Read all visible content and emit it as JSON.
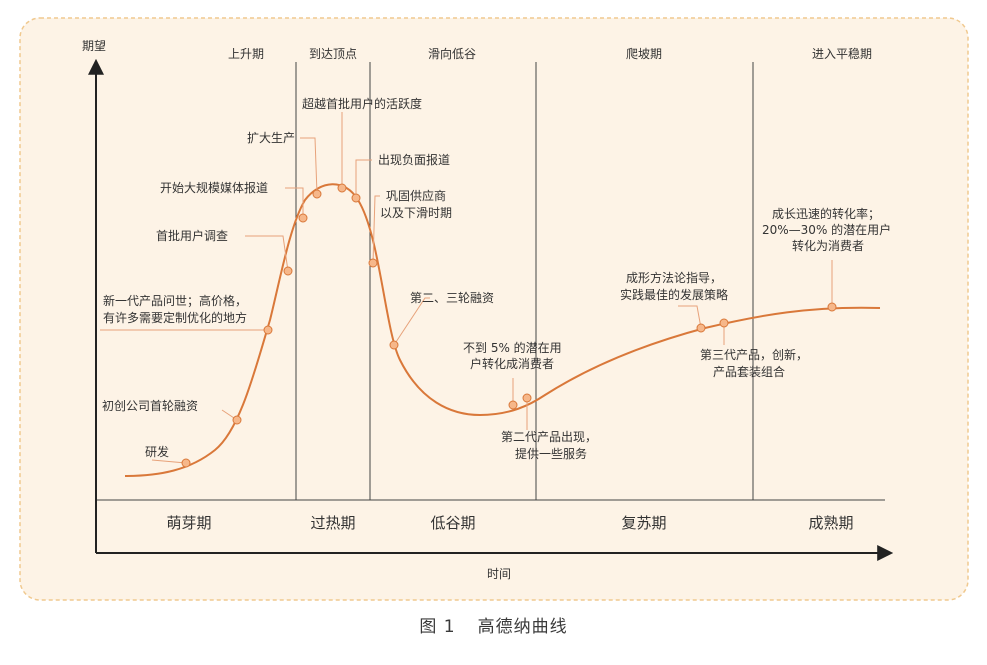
{
  "diagram": {
    "axis_y_label": "期望",
    "axis_x_label": "时间",
    "phases_top": [
      "上升期",
      "到达顶点",
      "滑向低谷",
      "爬坡期",
      "进入平稳期"
    ],
    "phases_bottom": [
      "萌芽期",
      "过热期",
      "低谷期",
      "复苏期",
      "成熟期"
    ],
    "annotations": {
      "a1": [
        "研发"
      ],
      "a2": [
        "初创公司首轮融资"
      ],
      "a3": [
        "新一代产品问世；高价格，",
        "有许多需要定制优化的地方"
      ],
      "a4": [
        "首批用户调查"
      ],
      "a5": [
        "开始大规模媒体报道"
      ],
      "a6": [
        "扩大生产"
      ],
      "a7": [
        "超越首批用户的活跃度"
      ],
      "a8": [
        "出现负面报道"
      ],
      "a9": [
        "巩固供应商",
        "以及下滑时期"
      ],
      "a10": [
        "第二、三轮融资"
      ],
      "a11": [
        "不到 5% 的潜在用",
        "户转化成消费者"
      ],
      "a12": [
        "第二代产品出现，",
        "提供一些服务"
      ],
      "a13": [
        "成形方法论指导，",
        "实践最佳的发展策略"
      ],
      "a14": [
        "第三代产品，创新，",
        "产品套装组合"
      ],
      "a15": [
        "成长迅速的转化率；",
        "20%—30% 的潜在用户",
        "转化为消费者"
      ]
    },
    "colors": {
      "panel_bg": "#fdf3e6",
      "panel_border": "#f0c98f",
      "curve": "#d9783a",
      "point_fill": "#f6b78a",
      "axis": "#222222",
      "leader": "#e7a27a"
    }
  },
  "caption": {
    "figure_no": "图 1",
    "title": "高德纳曲线"
  }
}
